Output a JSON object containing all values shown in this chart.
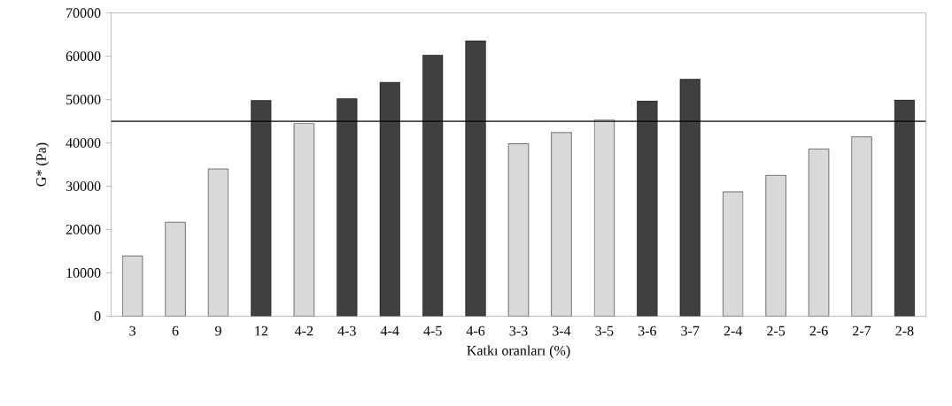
{
  "chart_data": {
    "type": "bar",
    "xlabel": "Katkı oranları (%)",
    "ylabel": "G* (Pa)",
    "categories": [
      "3",
      "6",
      "9",
      "12",
      "4-2",
      "4-3",
      "4-4",
      "4-5",
      "4-6",
      "3-3",
      "3-4",
      "3-5",
      "3-6",
      "3-7",
      "2-4",
      "2-5",
      "2-6",
      "2-7",
      "2-8"
    ],
    "values": [
      13900,
      21700,
      34000,
      49800,
      44500,
      50200,
      54000,
      60300,
      63600,
      39800,
      42400,
      45300,
      49700,
      54700,
      28700,
      32500,
      38600,
      41400,
      49900
    ],
    "colors": [
      "#d9d9d9",
      "#d9d9d9",
      "#d9d9d9",
      "#404040",
      "#d9d9d9",
      "#404040",
      "#404040",
      "#404040",
      "#404040",
      "#d9d9d9",
      "#d9d9d9",
      "#d9d9d9",
      "#404040",
      "#404040",
      "#d9d9d9",
      "#d9d9d9",
      "#d9d9d9",
      "#d9d9d9",
      "#404040"
    ],
    "ylim": [
      0,
      70000
    ],
    "yticks": [
      0,
      10000,
      20000,
      30000,
      40000,
      50000,
      60000,
      70000
    ],
    "ref_lines": [
      {
        "axis": "y",
        "value": 45000,
        "color": "#000000"
      }
    ],
    "grid": false
  }
}
